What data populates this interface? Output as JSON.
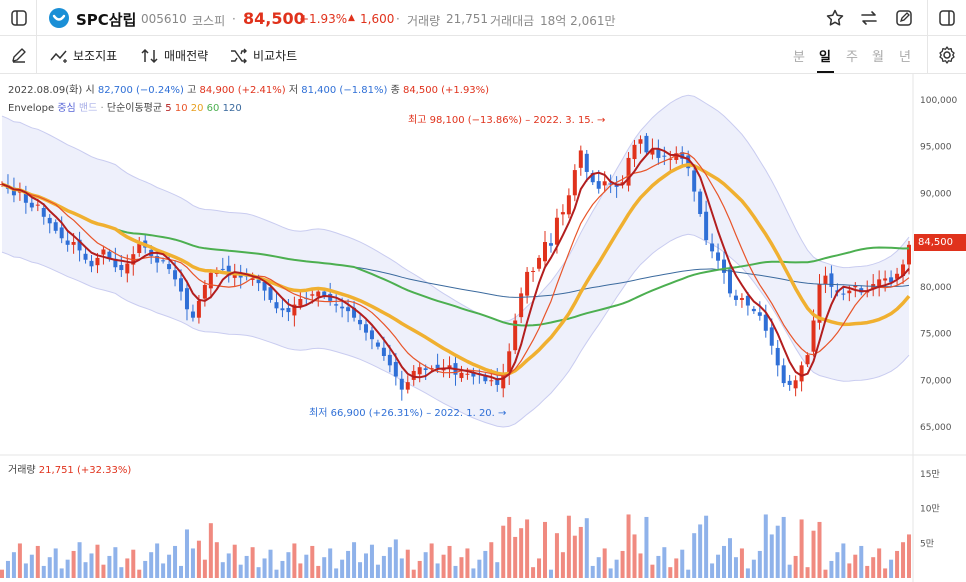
{
  "header": {
    "stock_name": "SPC삼립",
    "stock_code": "005610",
    "market": "코스피",
    "dot": "·",
    "price": "84,500",
    "change_pct": "+1.93%",
    "change_arrow": "▲",
    "change_amt": "1,600",
    "volume_label": "거래량",
    "volume_value": "21,751",
    "trade_amount_label": "거래대금",
    "trade_amount_value": "18억 2,061만"
  },
  "toolbar": {
    "indicator_label": "보조지표",
    "strategy_label": "매매전략",
    "compare_label": "비교차트",
    "periods": [
      "분",
      "일",
      "주",
      "월",
      "년"
    ],
    "active_period": "일"
  },
  "ohlc_info": {
    "date": "2022.08.09(화)",
    "open_label": "시",
    "open": "82,700 (−0.24%)",
    "high_label": "고",
    "high": "84,900 (+2.41%)",
    "low_label": "저",
    "low": "81,400 (−1.81%)",
    "close_label": "종",
    "close": "84,500 (+1.93%)"
  },
  "indicator_legend": {
    "envelope": "Envelope",
    "center": "중심",
    "band": "밴드",
    "ma_label": "단순이동평균",
    "ma5": "5",
    "ma10": "10",
    "ma20": "20",
    "ma60": "60",
    "ma120": "120"
  },
  "annotations": {
    "high": "최고 98,100 (−13.86%) – 2022. 3. 15. →",
    "low": "최저 66,900 (+26.31%) – 2022. 1. 20. →"
  },
  "price_axis": [
    "100,000",
    "95,000",
    "90,000",
    "85,000",
    "80,000",
    "75,000",
    "70,000",
    "65,000"
  ],
  "current_price_tag": "84,500",
  "volume_panel": {
    "label": "거래량",
    "value": "21,751 (+32.33%)",
    "axis": [
      "15만",
      "10만",
      "5만"
    ]
  },
  "colors": {
    "up": "#e0321c",
    "down": "#2f6fd6",
    "ma5": "#b31e1e",
    "ma10": "#e8552a",
    "ma20": "#f0b030",
    "ma60": "#4caf50",
    "ma120": "#3b6a9e",
    "envelope_fill": "#eef0fb",
    "envelope_line": "#c9ccf0"
  },
  "chart_data": {
    "type": "line",
    "price_range": [
      63000,
      102000
    ],
    "close": [
      91000,
      90500,
      89800,
      90200,
      89000,
      88500,
      88800,
      87500,
      86800,
      86000,
      85200,
      84500,
      84800,
      83900,
      82900,
      82200,
      83100,
      84000,
      83000,
      82100,
      81800,
      82500,
      83500,
      84600,
      84200,
      83300,
      82600,
      82800,
      81900,
      80800,
      79500,
      77600,
      76700,
      78500,
      80200,
      81500,
      81800,
      81900,
      81200,
      81500,
      81000,
      81100,
      80900,
      80400,
      79600,
      78600,
      77700,
      77500,
      77300,
      78100,
      78700,
      78700,
      79200,
      79500,
      79000,
      78500,
      78000,
      77700,
      77400,
      76700,
      76000,
      75100,
      74400,
      73600,
      72600,
      71600,
      70400,
      69000,
      69800,
      71000,
      71400,
      71100,
      71300,
      71300,
      71200,
      71600,
      70600,
      70800,
      70700,
      70400,
      70700,
      69900,
      70000,
      69500,
      70800,
      73100,
      76400,
      79300,
      81600,
      81700,
      83100,
      84800,
      84400,
      87400,
      88000,
      89800,
      92500,
      94600,
      92300,
      91200,
      90500,
      91300,
      91000,
      90700,
      91200,
      93800,
      95200,
      95800,
      94400,
      94700,
      93800,
      94000,
      93700,
      94300,
      93700,
      92700,
      90200,
      87800,
      85000,
      83800,
      82800,
      81500,
      79300,
      78600,
      78800,
      78000,
      77400,
      76900,
      75300,
      73700,
      71600,
      69700,
      69500,
      70000,
      71600,
      72700,
      76400,
      80300,
      81200,
      80000,
      79400,
      79200,
      79600,
      80100,
      79400,
      79500,
      80300,
      80800,
      80900,
      80500,
      81400,
      82400,
      84500
    ],
    "series": [
      {
        "name": "5",
        "key": "ma5"
      },
      {
        "name": "10",
        "key": "ma10"
      },
      {
        "name": "20",
        "key": "ma20"
      },
      {
        "name": "60",
        "key": "ma60"
      },
      {
        "name": "120",
        "key": "ma120"
      }
    ],
    "volume_range": [
      0,
      160000
    ]
  }
}
